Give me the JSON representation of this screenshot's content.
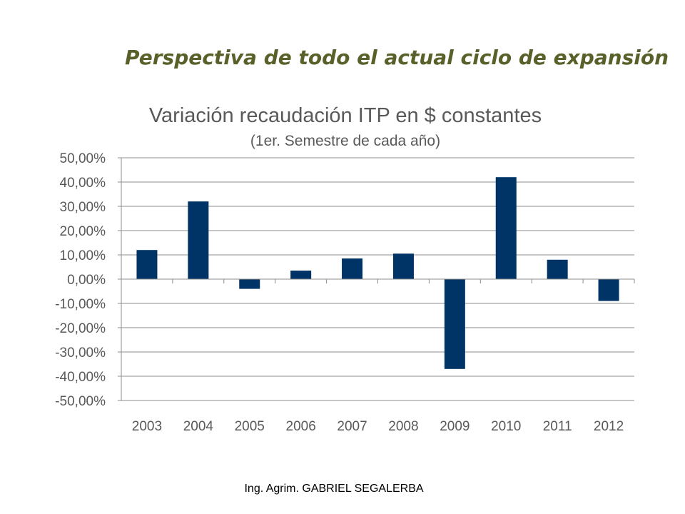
{
  "slide": {
    "title": "Perspectiva de todo el actual ciclo de expansión",
    "footer": "Ing. Agrim. GABRIEL SEGALERBA"
  },
  "chart_data": {
    "type": "bar",
    "title": "Variación recaudación ITP en $ constantes",
    "subtitle": "(1er. Semestre de cada año)",
    "categories": [
      "2003",
      "2004",
      "2005",
      "2006",
      "2007",
      "2008",
      "2009",
      "2010",
      "2011",
      "2012"
    ],
    "values": [
      12.0,
      32.0,
      -4.0,
      3.5,
      8.5,
      10.5,
      -37.0,
      42.0,
      8.0,
      -9.0
    ],
    "ylim": [
      -50,
      50
    ],
    "ytick_step": 10,
    "y_tick_labels": [
      "50,00%",
      "40,00%",
      "30,00%",
      "20,00%",
      "10,00%",
      "0,00%",
      "-10,00%",
      "-20,00%",
      "-30,00%",
      "-40,00%",
      "-50,00%"
    ],
    "grid": true,
    "legend": "none",
    "bar_color": "#003366"
  }
}
